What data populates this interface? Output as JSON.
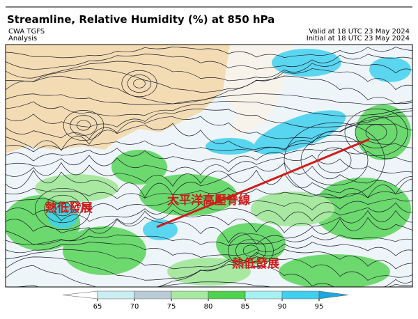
{
  "header": {
    "title": "Streamline, Relative Humidity (%) at 850 hPa",
    "model": "CWA TGFS",
    "run_type": "Analysis",
    "valid": "Valid at 18 UTC 23 May 2024",
    "initial": "Initial at 18 UTC 23 May 2024"
  },
  "annotations": [
    "熱低發展",
    "太平洋高壓脊線",
    "熱低發展"
  ],
  "colorbar": {
    "ticks": [
      65,
      70,
      75,
      80,
      85,
      90,
      95
    ],
    "colors": [
      "#ffffff",
      "#c9eef2",
      "#b9cbd6",
      "#a8e8a0",
      "#4fd24f",
      "#a6f0f2",
      "#3fd0ee",
      "#1ba8dc"
    ]
  }
}
